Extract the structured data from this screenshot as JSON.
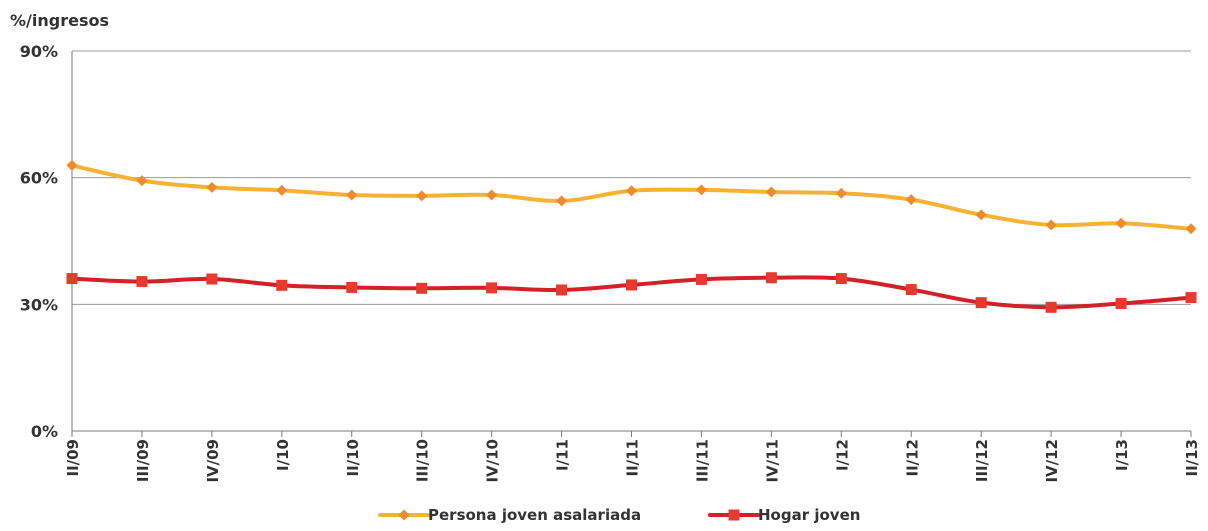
{
  "chart_data": {
    "type": "line",
    "title": "",
    "xlabel": "",
    "ylabel": "%/ingresos",
    "categories": [
      "II/09",
      "III/09",
      "IV/09",
      "I/10",
      "II/10",
      "III/10",
      "IV/10",
      "I/11",
      "II/11",
      "III/11",
      "IV/11",
      "I/12",
      "II/12",
      "III/12",
      "IV/12",
      "I/13",
      "II/13"
    ],
    "ylim": [
      0,
      90
    ],
    "yticks": [
      0,
      30,
      60,
      90
    ],
    "ytick_labels": [
      "0%",
      "30%",
      "60%",
      "90%"
    ],
    "grid": true,
    "legend_position": "bottom",
    "series": [
      {
        "name": "Persona joven asalariada",
        "color": "#F7B233",
        "marker_color": "#F08A2A",
        "marker": "diamond",
        "values": [
          62.9,
          59.3,
          57.7,
          57.0,
          55.9,
          55.7,
          55.9,
          54.5,
          56.9,
          57.1,
          56.6,
          56.3,
          54.8,
          51.2,
          48.8,
          49.2,
          47.9
        ]
      },
      {
        "name": "Hogar joven",
        "color": "#D42027",
        "marker_color": "#E8392F",
        "marker": "square",
        "values": [
          36.1,
          35.4,
          36.0,
          34.5,
          34.0,
          33.8,
          33.9,
          33.4,
          34.6,
          35.9,
          36.3,
          36.1,
          33.5,
          30.4,
          29.3,
          30.2,
          31.6
        ]
      }
    ]
  }
}
